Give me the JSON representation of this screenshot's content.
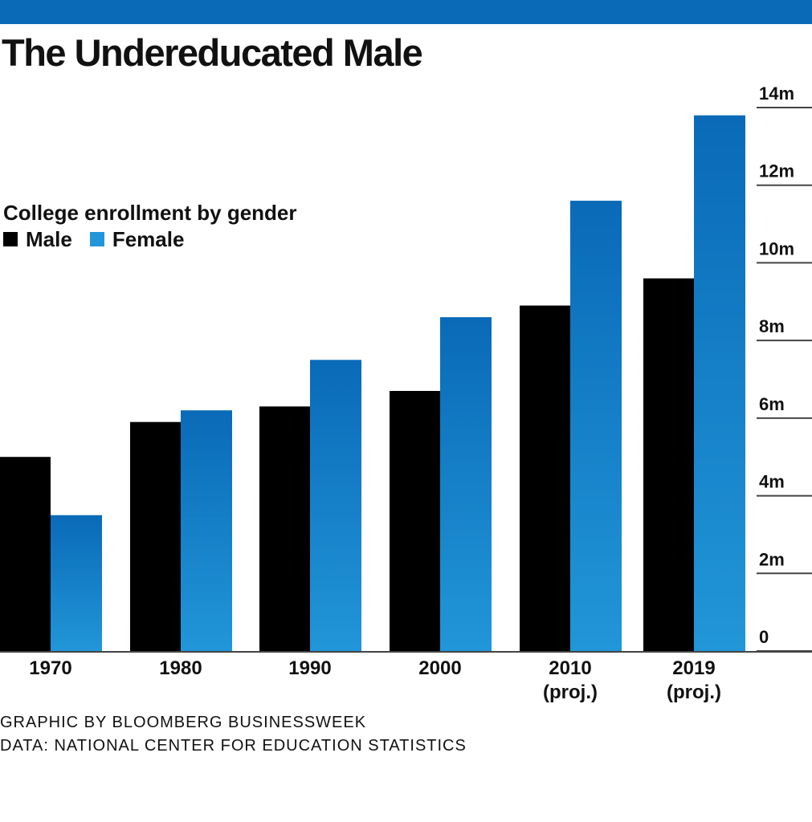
{
  "title": "The Undereducated Male",
  "legend": {
    "title": "College enrollment by gender",
    "male_label": "Male",
    "female_label": "Female"
  },
  "colors": {
    "brand_bar": "#0a6ab8",
    "male": "#000000",
    "female_top": "#0a6ab8",
    "female_bottom": "#2196d8",
    "gridline": "#444444"
  },
  "credits": {
    "graphic": "GRAPHIC BY BLOOMBERG BUSINESSWEEK",
    "data": "DATA: NATIONAL CENTER FOR EDUCATION STATISTICS"
  },
  "chart_data": {
    "type": "bar",
    "title": "The Undereducated Male",
    "subtitle": "College enrollment by gender",
    "categories": [
      "1970",
      "1980",
      "1990",
      "2000",
      "2010",
      "2019"
    ],
    "category_sublabels": [
      "",
      "",
      "",
      "",
      "(proj.)",
      "(proj.)"
    ],
    "series": [
      {
        "name": "Male",
        "values": [
          5.0,
          5.9,
          6.3,
          6.7,
          8.9,
          9.6
        ]
      },
      {
        "name": "Female",
        "values": [
          3.5,
          6.2,
          7.5,
          8.6,
          11.6,
          13.8
        ]
      }
    ],
    "ylim": [
      0,
      14
    ],
    "yticks": [
      0,
      2,
      4,
      6,
      8,
      10,
      12,
      14
    ],
    "ytick_labels": [
      "0",
      "2m",
      "4m",
      "6m",
      "8m",
      "10m",
      "12m",
      "14m"
    ],
    "y_axis_side": "right",
    "grid": true,
    "xlabel": "",
    "ylabel": "",
    "legend_position": "top-left"
  }
}
